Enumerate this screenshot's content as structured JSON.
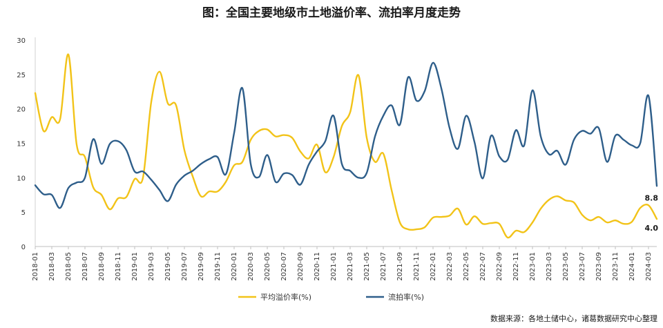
{
  "chart_data": {
    "type": "line",
    "title": "图：全国主要地级市土地溢价率、流拍率月度走势",
    "source": "数据来源：各地土储中心，诸葛数据研究中心整理",
    "ylim": [
      0,
      30
    ],
    "yticks": [
      0,
      5,
      10,
      15,
      20,
      25,
      30
    ],
    "grid": false,
    "legend_position": "bottom",
    "x": [
      "2018-01",
      "2018-02",
      "2018-03",
      "2018-04",
      "2018-05",
      "2018-06",
      "2018-07",
      "2018-08",
      "2018-09",
      "2018-10",
      "2018-11",
      "2018-12",
      "2019-01",
      "2019-02",
      "2019-03",
      "2019-04",
      "2019-05",
      "2019-06",
      "2019-07",
      "2019-08",
      "2019-09",
      "2019-10",
      "2019-11",
      "2019-12",
      "2020-01",
      "2020-02",
      "2020-03",
      "2020-04",
      "2020-05",
      "2020-06",
      "2020-07",
      "2020-08",
      "2020-09",
      "2020-10",
      "2020-11",
      "2020-12",
      "2021-01",
      "2021-02",
      "2021-03",
      "2021-04",
      "2021-05",
      "2021-06",
      "2021-07",
      "2021-08",
      "2021-09",
      "2021-10",
      "2021-11",
      "2021-12",
      "2022-01",
      "2022-02",
      "2022-03",
      "2022-04",
      "2022-05",
      "2022-06",
      "2022-07",
      "2022-08",
      "2022-09",
      "2022-10",
      "2022-11",
      "2022-12",
      "2023-01",
      "2023-02",
      "2023-03",
      "2023-04",
      "2023-05",
      "2023-06",
      "2023-07",
      "2023-08",
      "2023-09",
      "2023-10",
      "2023-11",
      "2023-12",
      "2024-01",
      "2024-02",
      "2024-03",
      "2024-04"
    ],
    "series": [
      {
        "name": "平均溢价率(%)",
        "color": "#F2C318",
        "values": [
          22.3,
          16.8,
          18.8,
          18.5,
          27.9,
          14.8,
          13.0,
          8.6,
          7.5,
          5.4,
          7.0,
          7.2,
          9.8,
          10.0,
          21.0,
          25.4,
          20.8,
          20.5,
          14.0,
          10.2,
          7.3,
          8.0,
          8.0,
          9.4,
          11.8,
          12.3,
          15.5,
          16.8,
          17.0,
          16.0,
          16.2,
          15.8,
          13.8,
          12.8,
          14.8,
          10.8,
          13.0,
          17.5,
          19.5,
          24.9,
          15.8,
          12.3,
          13.5,
          8.2,
          3.5,
          2.5,
          2.5,
          2.8,
          4.2,
          4.3,
          4.5,
          5.5,
          3.2,
          4.4,
          3.3,
          3.4,
          3.3,
          1.3,
          2.3,
          2.1,
          3.5,
          5.5,
          6.8,
          7.3,
          6.7,
          6.4,
          4.6,
          3.8,
          4.3,
          3.5,
          3.8,
          3.3,
          3.6,
          5.6,
          6.0,
          4.0
        ]
      },
      {
        "name": "流拍率(%)",
        "color": "#2E5E8A",
        "values": [
          8.9,
          7.6,
          7.5,
          5.6,
          8.5,
          9.3,
          10.0,
          15.6,
          12.0,
          14.9,
          15.3,
          14.0,
          10.9,
          10.9,
          9.7,
          8.2,
          6.6,
          9.0,
          10.3,
          11.0,
          12.0,
          12.7,
          13.0,
          10.5,
          16.5,
          23.0,
          12.0,
          10.1,
          13.3,
          9.4,
          10.6,
          10.4,
          9.0,
          11.9,
          13.8,
          15.3,
          19.0,
          12.0,
          11.0,
          10.0,
          10.7,
          16.0,
          19.0,
          20.5,
          17.7,
          24.6,
          21.2,
          22.6,
          26.7,
          23.0,
          17.2,
          14.2,
          19.0,
          15.2,
          9.9,
          16.1,
          13.1,
          12.6,
          16.9,
          14.7,
          22.7,
          16.0,
          13.4,
          13.9,
          11.9,
          15.5,
          16.8,
          16.4,
          17.2,
          12.3,
          16.1,
          15.5,
          14.7,
          15.0,
          21.9,
          8.8
        ]
      }
    ],
    "end_labels": [
      "4.0",
      "8.8"
    ]
  }
}
